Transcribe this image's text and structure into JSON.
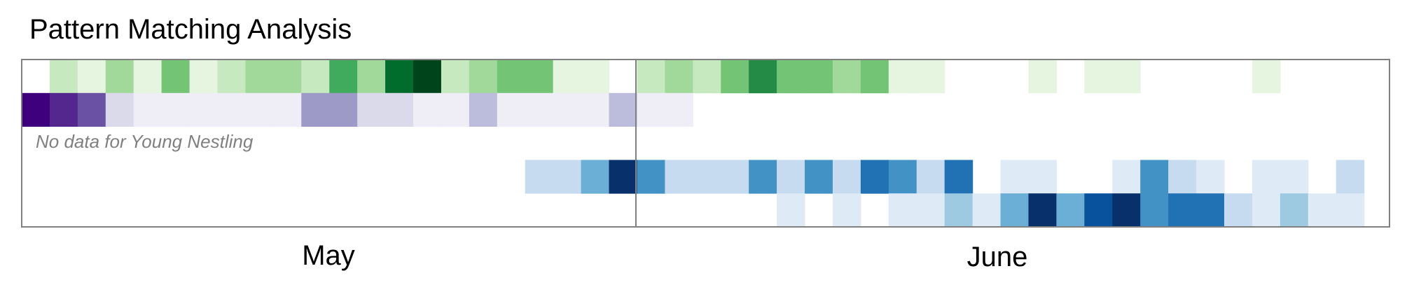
{
  "title": "Pattern Matching Analysis",
  "chart_data": {
    "type": "heatmap",
    "title": "Pattern Matching Analysis",
    "x_unit": "day",
    "x_start": "May 1",
    "x_end": "June 30",
    "x_tick_labels": [
      "May",
      "June"
    ],
    "month_boundary": "June 1",
    "grid": false,
    "rows": [
      {
        "row": 1,
        "palette": "greens",
        "values": [
          0,
          0.25,
          0.15,
          0.35,
          0.08,
          0.55,
          0.08,
          0.25,
          0.35,
          0.35,
          0.25,
          0.65,
          0.35,
          0.85,
          1.0,
          0.25,
          0.35,
          0.45,
          0.45,
          0.08,
          0.08,
          0,
          0.25,
          0.35,
          0.25,
          0.45,
          0.75,
          0.45,
          0.55,
          0.35,
          0.55,
          0.15,
          0.08,
          0,
          0,
          0,
          0.08,
          0,
          0.08,
          0.08,
          0,
          0,
          0,
          0,
          0.08,
          0,
          0,
          0,
          0,
          0,
          0,
          0,
          0,
          0,
          0,
          0,
          0,
          0,
          0,
          0,
          0
        ]
      },
      {
        "row": 2,
        "palette": "purples",
        "values": [
          1.0,
          0.85,
          0.75,
          0.3,
          0.12,
          0.05,
          0.05,
          0.05,
          0.12,
          0.12,
          0.45,
          0.5,
          0.2,
          0.3,
          0.1,
          0.15,
          0.35,
          0.1,
          0.1,
          0.05,
          0.05,
          0.35,
          0.05,
          0.12,
          0,
          0,
          0,
          0,
          0,
          0,
          0,
          0,
          0,
          0,
          0,
          0,
          0,
          0,
          0,
          0,
          0,
          0,
          0,
          0,
          0,
          0,
          0,
          0,
          0,
          0,
          0,
          0,
          0,
          0,
          0,
          0,
          0,
          0,
          0,
          0,
          0
        ]
      },
      {
        "row": 3,
        "palette": "none",
        "note": "No data for Young Nestling",
        "values": []
      },
      {
        "row": 4,
        "palette": "blues",
        "values": [
          0,
          0,
          0,
          0,
          0,
          0,
          0,
          0,
          0,
          0,
          0,
          0,
          0,
          0,
          0,
          0,
          0,
          0,
          0.2,
          0.2,
          0.55,
          1.0,
          0.65,
          0.3,
          0.3,
          0.2,
          0.65,
          0.3,
          0.65,
          0.2,
          0.8,
          0.65,
          0.2,
          0.8,
          0,
          0.12,
          0.12,
          0,
          0,
          0.12,
          0.65,
          0.3,
          0.12,
          0,
          0.12,
          0.12,
          0,
          0.3,
          0
        ]
      },
      {
        "row": 5,
        "palette": "blues",
        "values": [
          0,
          0,
          0,
          0,
          0,
          0,
          0,
          0,
          0,
          0,
          0,
          0,
          0,
          0,
          0,
          0,
          0,
          0,
          0,
          0,
          0,
          0,
          0,
          0,
          0,
          0,
          0,
          0.1,
          0,
          0.1,
          0,
          0.1,
          0.15,
          0.4,
          0.15,
          0.5,
          1.0,
          0.5,
          0.85,
          1.0,
          0.6,
          0.7,
          0.8,
          0.2,
          0.15,
          0.35,
          0.15,
          0.1
        ]
      }
    ]
  },
  "colors": {
    "greens": [
      "#f7fcf5",
      "#e5f5e0",
      "#c7e9c0",
      "#a1d99b",
      "#74c476",
      "#41ab5d",
      "#238b45",
      "#006d2c",
      "#00441b"
    ],
    "purples": [
      "#fcfbfd",
      "#efedf5",
      "#dadaeb",
      "#bcbddc",
      "#9e9ac8",
      "#807dba",
      "#6a51a3",
      "#54278f",
      "#3f007d"
    ],
    "blues": [
      "#f7fbff",
      "#deebf7",
      "#c6dbef",
      "#9ecae1",
      "#6baed6",
      "#4292c6",
      "#2171b5",
      "#08519c",
      "#08306b"
    ],
    "frame": "#808080",
    "note_text": "#808080"
  }
}
